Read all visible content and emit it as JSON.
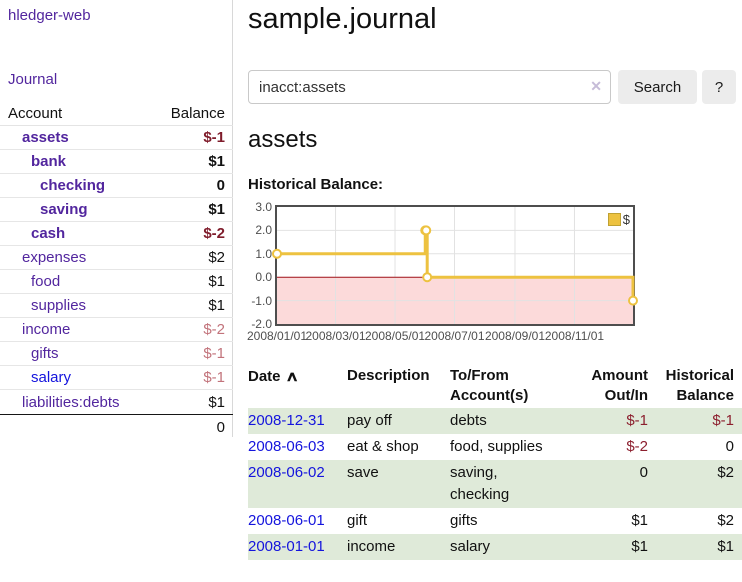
{
  "app": {
    "title": "hledger-web"
  },
  "sidebar": {
    "journal_link": "Journal",
    "table": {
      "headers": {
        "account": "Account",
        "balance": "Balance"
      },
      "rows": [
        {
          "name": "assets",
          "depth": 1,
          "bold": true,
          "balance": "$-1",
          "balance_class": "neg-strong"
        },
        {
          "name": "bank",
          "depth": 2,
          "bold": true,
          "balance": "$1",
          "balance_class": ""
        },
        {
          "name": "checking",
          "depth": 3,
          "bold": true,
          "balance": "0",
          "balance_class": ""
        },
        {
          "name": "saving",
          "depth": 3,
          "bold": true,
          "balance": "$1",
          "balance_class": ""
        },
        {
          "name": "cash",
          "depth": 2,
          "bold": true,
          "balance": "$-2",
          "balance_class": "neg-strong"
        },
        {
          "name": "expenses",
          "depth": 1,
          "bold": false,
          "balance": "$2",
          "balance_class": ""
        },
        {
          "name": "food",
          "depth": 2,
          "bold": false,
          "balance": "$1",
          "balance_class": ""
        },
        {
          "name": "supplies",
          "depth": 2,
          "bold": false,
          "balance": "$1",
          "balance_class": ""
        },
        {
          "name": "income",
          "depth": 1,
          "bold": false,
          "balance": "$-2",
          "balance_class": "neg-weak"
        },
        {
          "name": "gifts",
          "depth": 2,
          "bold": false,
          "balance": "$-1",
          "balance_class": "neg-weak"
        },
        {
          "name": "salary",
          "depth": 2,
          "bold": false,
          "balance": "$-1",
          "balance_class": "neg-weak",
          "link": "unvisited"
        },
        {
          "name": "liabilities:debts",
          "depth": 1,
          "bold": false,
          "balance": "$1",
          "balance_class": ""
        }
      ],
      "total": "0"
    }
  },
  "main": {
    "title": "sample.journal",
    "search": {
      "query": "inacct:assets",
      "clear_icon": "✕",
      "button": "Search",
      "help": "?"
    },
    "heading": "assets",
    "chart_label": "Historical Balance:"
  },
  "chart_data": {
    "type": "line",
    "step": true,
    "title": "Historical Balance",
    "series": [
      {
        "name": "$",
        "color": "#edc240",
        "points": [
          [
            "2008-01-01",
            1
          ],
          [
            "2008-06-01",
            2
          ],
          [
            "2008-06-02",
            2
          ],
          [
            "2008-06-03",
            0
          ],
          [
            "2008-12-31",
            -1
          ]
        ]
      }
    ],
    "x_ticks": [
      [
        "2008/01/01",
        "2008-01-01"
      ],
      [
        "2008/03/01",
        "2008-03-01"
      ],
      [
        "2008/05/01",
        "2008-05-01"
      ],
      [
        "2008/07/01",
        "2008-07-01"
      ],
      [
        "2008/09/01",
        "2008-09-01"
      ],
      [
        "2008/11/01",
        "2008-11-01"
      ]
    ],
    "y_ticks": [
      [
        "3.0",
        3
      ],
      [
        "2.0",
        2
      ],
      [
        "1.0",
        1
      ],
      [
        "0.0",
        0
      ],
      [
        "-1.0",
        -1
      ],
      [
        "-2.0",
        -2
      ]
    ],
    "xlim": [
      "2008-01-01",
      "2008-12-31"
    ],
    "ylim": [
      -2,
      3
    ],
    "grid": true,
    "negative_region": true,
    "legend": {
      "label": "$",
      "position": "top-right",
      "swatch_color": "#edc240"
    }
  },
  "register": {
    "headers": {
      "date": "Date",
      "sort_indicator": "∧",
      "description": "Description",
      "accounts": "To/From Account(s)",
      "amount": "Amount Out/In",
      "balance": "Historical Balance"
    },
    "rows": [
      {
        "date": "2008-12-31",
        "description": "pay off",
        "accounts": "debts",
        "amount": "$-1",
        "balance": "$-1"
      },
      {
        "date": "2008-06-03",
        "description": "eat & shop",
        "accounts": "food, supplies",
        "amount": "$-2",
        "balance": "0"
      },
      {
        "date": "2008-06-02",
        "description": "save",
        "accounts": "saving, checking",
        "amount": "0",
        "balance": "$2"
      },
      {
        "date": "2008-06-01",
        "description": "gift",
        "accounts": "gifts",
        "amount": "$1",
        "balance": "$2"
      },
      {
        "date": "2008-01-01",
        "description": "income",
        "accounts": "salary",
        "amount": "$1",
        "balance": "$1"
      }
    ]
  },
  "colors": {
    "link_visited": "#52269e",
    "link_unvisited": "#1414dd",
    "negative_strong": "#7f1c2b",
    "negative_weak": "#c2737b",
    "register_negative": "#8c1f2e",
    "table_stripe": "#dfead9",
    "chart_line": "#edc240",
    "chart_negative_fill": "#fcdada",
    "chart_zero_line": "#9f1118",
    "chart_grid": "#e2e2e2"
  }
}
